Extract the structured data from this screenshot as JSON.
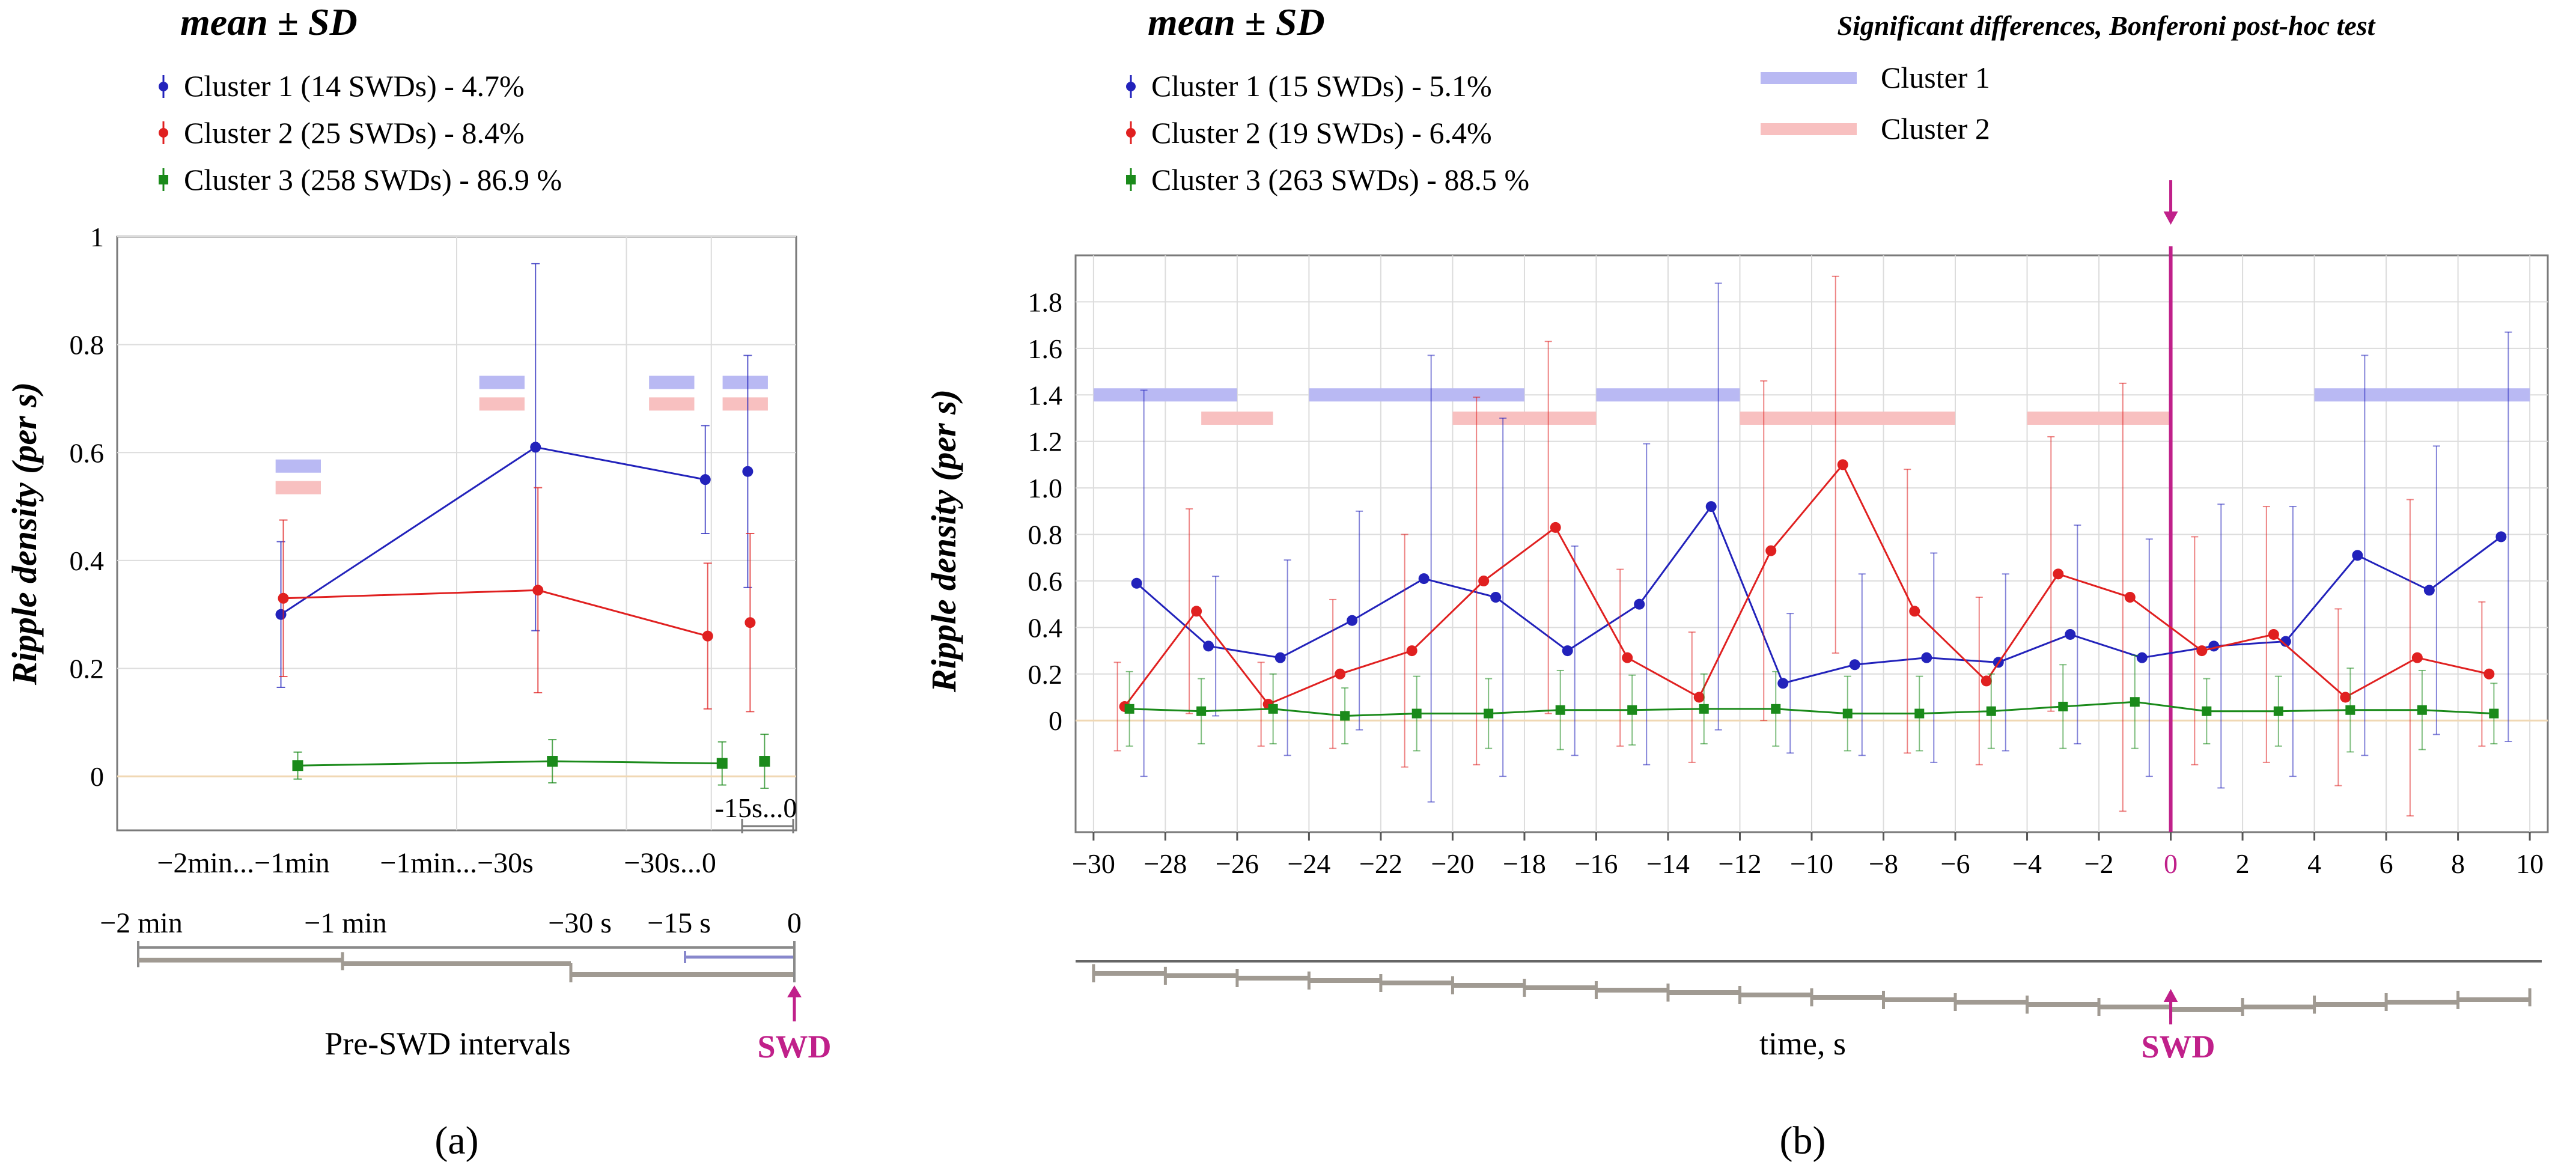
{
  "colors": {
    "cluster1": "#2222bb",
    "cluster2": "#e02020",
    "cluster3": "#1a8a1a",
    "sig1": "#b9b9f3",
    "sig2": "#f8c0c0",
    "grid": "#dcdcdc",
    "zero": "#f0d8b4",
    "swd": "#c0208a",
    "timeline": "#a09a92"
  },
  "chart_data": [
    {
      "id": "a",
      "type": "line",
      "panel_label": "(a)",
      "legend_title": "mean ± SD",
      "legend": [
        "Cluster 1 (14 SWDs) - 4.7%",
        "Cluster 2 (25 SWDs) - 8.4%",
        "Cluster 3 (258 SWDs) - 86.9 %"
      ],
      "ylabel": "Ripple density (per s)",
      "ylim": [
        -0.1,
        1.0
      ],
      "yticks": [
        0,
        0.2,
        0.4,
        0.6,
        0.8,
        1.0
      ],
      "ytick_labels": [
        "0",
        "0.2",
        "0.4",
        "0.6",
        "0.8",
        "1.0"
      ],
      "category_labels": [
        "−2min...−1min",
        "−1min...−30s",
        "−30s...0",
        "-15s...0"
      ],
      "series": [
        {
          "name": "Cluster 1",
          "color_key": "cluster1",
          "marker": "circle",
          "x": [
            -90,
            -45,
            -15,
            -7.5
          ],
          "y": [
            0.3,
            0.61,
            0.55,
            0.565
          ],
          "err": [
            0.135,
            0.34,
            0.1,
            0.215
          ],
          "line_points": 3
        },
        {
          "name": "Cluster 2",
          "color_key": "cluster2",
          "marker": "circle",
          "x": [
            -90,
            -45,
            -15,
            -7.5
          ],
          "y": [
            0.33,
            0.345,
            0.26,
            0.285
          ],
          "err": [
            0.145,
            0.19,
            0.135,
            0.165
          ],
          "line_points": 3
        },
        {
          "name": "Cluster 3",
          "color_key": "cluster3",
          "marker": "square",
          "x": [
            -90,
            -45,
            -15,
            -7.5
          ],
          "y": [
            0.02,
            0.028,
            0.024,
            0.028
          ],
          "err": [
            0.025,
            0.04,
            0.04,
            0.05
          ],
          "line_points": 3
        }
      ],
      "sig_bars": {
        "cluster1": [
          [
            -92,
            -84
          ],
          [
            -56,
            -48
          ],
          [
            -26,
            -18
          ],
          [
            -13,
            -5
          ]
        ],
        "cluster2": [
          [
            -92,
            -84
          ],
          [
            -56,
            -48
          ],
          [
            -26,
            -18
          ],
          [
            -13,
            -5
          ]
        ]
      },
      "time_axis": {
        "ticks": [
          -120,
          -60,
          -30,
          -15,
          0
        ],
        "labels": [
          "−2 min",
          "−1 min",
          "−30 s",
          "−15 s",
          "0"
        ],
        "caption": "Pre-SWD intervals",
        "event": "SWD"
      }
    },
    {
      "id": "b",
      "type": "line",
      "panel_label": "(b)",
      "legend_title": "mean ± SD",
      "legend": [
        "Cluster 1 (15 SWDs) - 5.1%",
        "Cluster 2 (19 SWDs) - 6.4%",
        "Cluster 3 (263 SWDs) - 88.5 %"
      ],
      "sig_title": "Significant differences, Bonferoni post-hoc test",
      "sig_legend": [
        "Cluster 1",
        "Cluster 2"
      ],
      "ylabel": "Ripple density (per s)",
      "xlabel": "time, s",
      "xlim": [
        -30.5,
        10.5
      ],
      "ylim": [
        -0.48,
        2.0
      ],
      "yticks": [
        0,
        0.2,
        0.4,
        0.6,
        0.8,
        1.0,
        1.2,
        1.4,
        1.6,
        1.8
      ],
      "ytick_labels": [
        "0",
        "0.2",
        "0.4",
        "0.6",
        "0.8",
        "1.0",
        "1.2",
        "1.4",
        "1.6",
        "1.8"
      ],
      "xticks": [
        -30,
        -28,
        -26,
        -24,
        -22,
        -20,
        -18,
        -16,
        -14,
        -12,
        -10,
        -8,
        -6,
        -4,
        -2,
        0,
        2,
        4,
        6,
        8,
        10
      ],
      "xtick_labels": [
        "−30",
        "−28",
        "−26",
        "−24",
        "−22",
        "−20",
        "−18",
        "−16",
        "−14",
        "−12",
        "−10",
        "−8",
        "−6",
        "−4",
        "−2",
        "0",
        "2",
        "4",
        "6",
        "8",
        "10"
      ],
      "series": [
        {
          "name": "Cluster 1",
          "color_key": "cluster1",
          "marker": "circle",
          "x": [
            -29,
            -27,
            -25,
            -23,
            -21,
            -19,
            -17,
            -15,
            -13,
            -11,
            -9,
            -7,
            -5,
            -3,
            -1,
            1,
            3,
            5,
            7,
            9
          ],
          "y": [
            0.59,
            0.32,
            0.27,
            0.43,
            0.61,
            0.53,
            0.3,
            0.5,
            0.92,
            0.16,
            0.24,
            0.27,
            0.25,
            0.37,
            0.27,
            0.32,
            0.34,
            0.71,
            0.56,
            0.79
          ],
          "err": [
            0.83,
            0.3,
            0.42,
            0.47,
            0.96,
            0.77,
            0.45,
            0.69,
            0.96,
            0.3,
            0.39,
            0.45,
            0.38,
            0.47,
            0.51,
            0.61,
            0.58,
            0.86,
            0.62,
            0.88
          ]
        },
        {
          "name": "Cluster 2",
          "color_key": "cluster2",
          "marker": "circle",
          "x": [
            -29,
            -27,
            -25,
            -23,
            -21,
            -19,
            -17,
            -15,
            -13,
            -11,
            -9,
            -7,
            -5,
            -3,
            -1,
            1,
            3,
            5,
            7,
            9
          ],
          "y": [
            0.06,
            0.47,
            0.07,
            0.2,
            0.3,
            0.6,
            0.83,
            0.27,
            0.1,
            0.73,
            1.1,
            0.47,
            0.17,
            0.63,
            0.53,
            0.3,
            0.37,
            0.1,
            0.27,
            0.2
          ],
          "err": [
            0.19,
            0.44,
            0.18,
            0.32,
            0.5,
            0.79,
            0.8,
            0.38,
            0.28,
            0.73,
            0.81,
            0.61,
            0.36,
            0.59,
            0.92,
            0.49,
            0.55,
            0.38,
            0.68,
            0.31
          ]
        },
        {
          "name": "Cluster 3",
          "color_key": "cluster3",
          "marker": "square",
          "x": [
            -29,
            -27,
            -25,
            -23,
            -21,
            -19,
            -17,
            -15,
            -13,
            -11,
            -9,
            -7,
            -5,
            -3,
            -1,
            1,
            3,
            5,
            7,
            9
          ],
          "y": [
            0.05,
            0.04,
            0.05,
            0.02,
            0.03,
            0.03,
            0.045,
            0.045,
            0.05,
            0.05,
            0.03,
            0.03,
            0.04,
            0.06,
            0.08,
            0.04,
            0.04,
            0.045,
            0.045,
            0.03
          ],
          "err": [
            0.16,
            0.14,
            0.15,
            0.12,
            0.16,
            0.15,
            0.17,
            0.15,
            0.15,
            0.16,
            0.16,
            0.16,
            0.16,
            0.18,
            0.2,
            0.14,
            0.15,
            0.18,
            0.17,
            0.13
          ]
        }
      ],
      "sig_bars": {
        "cluster1": [
          [
            -30,
            -26
          ],
          [
            -24,
            -18
          ],
          [
            -16,
            -12
          ],
          [
            4,
            10
          ]
        ],
        "cluster2": [
          [
            -27,
            -25
          ],
          [
            -20,
            -16
          ],
          [
            -12,
            -6
          ],
          [
            -4,
            0
          ]
        ]
      },
      "time_axis": {
        "event": "SWD"
      }
    }
  ]
}
